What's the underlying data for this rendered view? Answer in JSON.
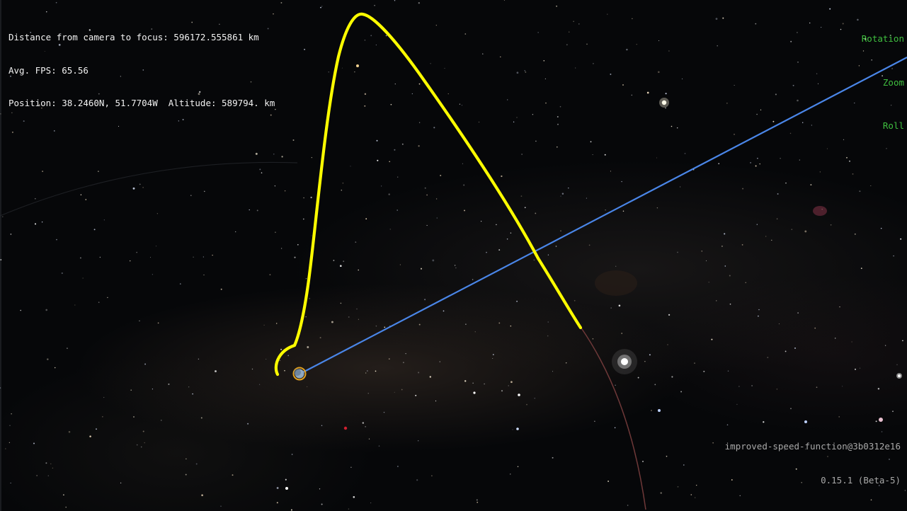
{
  "window": {
    "info": {
      "distance": "Distance from camera to focus: 596172.555861 km",
      "fps": "Avg. FPS: 65.56",
      "position": "Position: 38.2460N, 51.7704W  Altitude: 589794. km"
    },
    "controls": {
      "rotation": "Rotation",
      "zoom": "Zoom",
      "roll": "Roll"
    },
    "version": {
      "branch": "improved-speed-function@3b0312e16",
      "release": "0.15.1 (Beta-5)"
    }
  },
  "scene": {
    "colors": {
      "trajectory": "#ffff00",
      "axis_line": "#4a86e8",
      "faint_orbit": "#7a3e3e",
      "focus_ring": "#e0a020",
      "planet": "#8fa8c0",
      "hud_text": "#f2f2f2",
      "controls_text": "#3fbf3f",
      "version_text": "#a8a8a8"
    }
  }
}
